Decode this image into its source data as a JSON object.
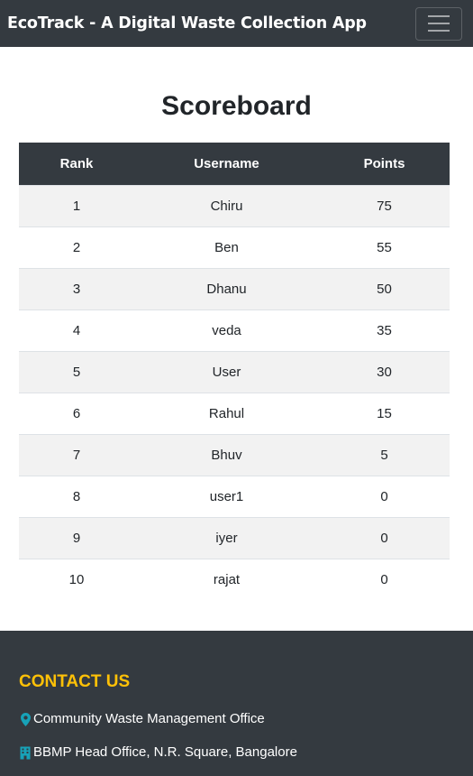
{
  "navbar": {
    "brand": "EcoTrack - A Digital Waste Collection App",
    "toggler_icon": "hamburger-menu-icon"
  },
  "main": {
    "title": "Scoreboard",
    "table": {
      "headers": [
        "Rank",
        "Username",
        "Points"
      ],
      "rows": [
        {
          "rank": "1",
          "username": "Chiru",
          "points": "75"
        },
        {
          "rank": "2",
          "username": "Ben",
          "points": "55"
        },
        {
          "rank": "3",
          "username": "Dhanu",
          "points": "50"
        },
        {
          "rank": "4",
          "username": "veda",
          "points": "35"
        },
        {
          "rank": "5",
          "username": "User",
          "points": "30"
        },
        {
          "rank": "6",
          "username": "Rahul",
          "points": "15"
        },
        {
          "rank": "7",
          "username": "Bhuv",
          "points": "5"
        },
        {
          "rank": "8",
          "username": "user1",
          "points": "0"
        },
        {
          "rank": "9",
          "username": "iyer",
          "points": "0"
        },
        {
          "rank": "10",
          "username": "rajat",
          "points": "0"
        }
      ]
    }
  },
  "footer": {
    "contact_title": "CONTACT US",
    "lines": [
      {
        "icon": "map-marker-icon",
        "text": "Community Waste Management Office"
      },
      {
        "icon": "building-icon",
        "text": "BBMP Head Office, N.R. Square, Bangalore"
      }
    ]
  },
  "colors": {
    "navbar_bg": "#343a40",
    "accent": "#ffc107",
    "icon_color": "#17a2b8"
  }
}
